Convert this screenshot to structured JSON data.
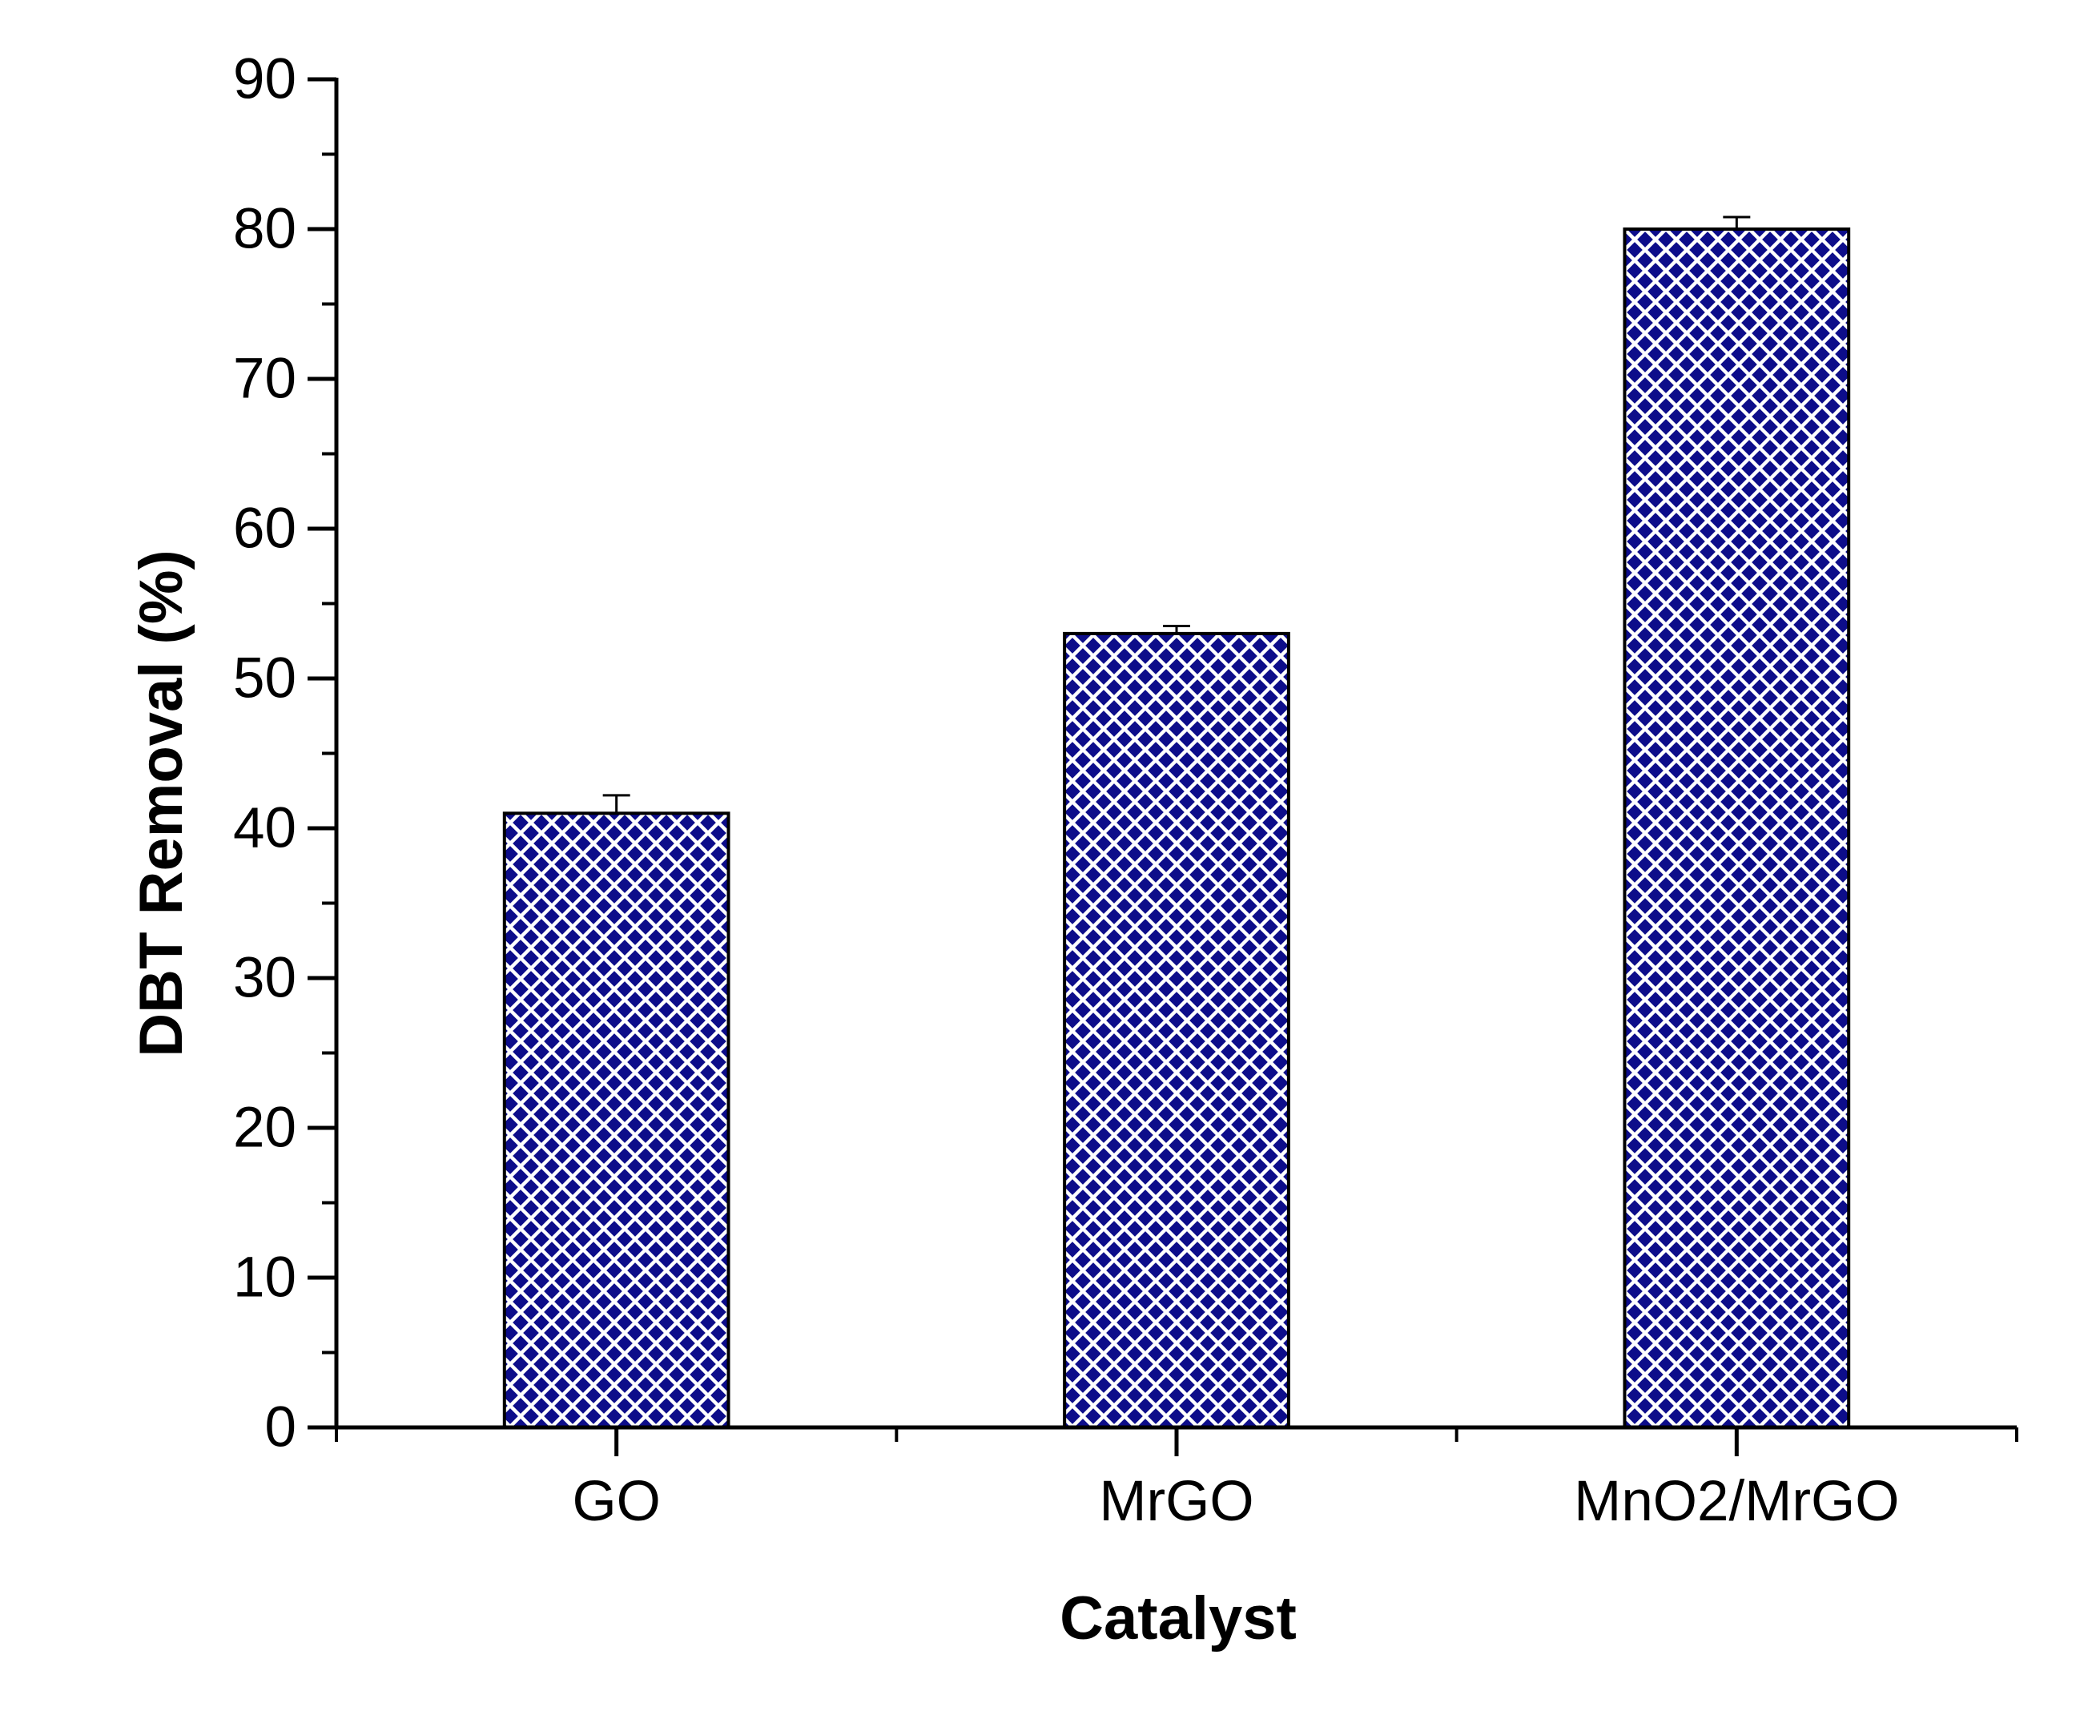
{
  "chart_data": {
    "type": "bar",
    "title": "",
    "xlabel": "Catalyst",
    "ylabel": "DBT Removal (%)",
    "categories": [
      "GO",
      "MrGO",
      "MnO2/MrGO"
    ],
    "values": [
      41,
      53,
      80
    ],
    "error_upper": [
      1.2,
      0.5,
      0.8
    ],
    "ylim": [
      0,
      90
    ],
    "yticks": [
      "0",
      "10",
      "20",
      "30",
      "40",
      "50",
      "60",
      "70",
      "80",
      "90"
    ],
    "grid": false,
    "legend": "none",
    "bar_fill": "crosshatch",
    "colors": {
      "bar": "#0d0d8a",
      "hatch": "#ffffff",
      "outline": "#000000",
      "axis": "#000000"
    }
  }
}
